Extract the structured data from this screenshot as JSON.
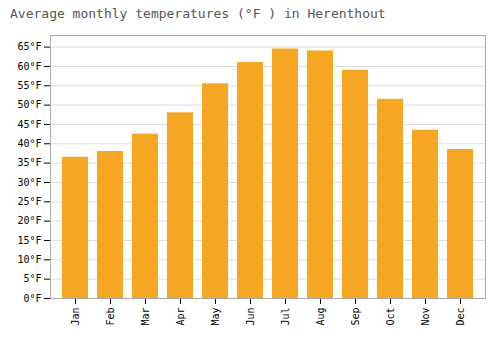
{
  "chart_data": {
    "type": "bar",
    "title": "Average monthly temperatures (°F ) in Herenthout",
    "categories": [
      "Jan",
      "Feb",
      "Mar",
      "Apr",
      "May",
      "Jun",
      "Jul",
      "Aug",
      "Sep",
      "Oct",
      "Nov",
      "Dec"
    ],
    "values": [
      36.5,
      38,
      42.5,
      48,
      55.5,
      61,
      64.5,
      64,
      59,
      51.5,
      43.5,
      38.5
    ],
    "color": "#F5A623",
    "ylim": [
      0,
      68
    ],
    "yticks": [
      {
        "value": 0,
        "label": "0°F"
      },
      {
        "value": 5,
        "label": "5°F"
      },
      {
        "value": 10,
        "label": "10°F"
      },
      {
        "value": 15,
        "label": "15°F"
      },
      {
        "value": 20,
        "label": "20°F"
      },
      {
        "value": 25,
        "label": "25°F"
      },
      {
        "value": 30,
        "label": "30°F"
      },
      {
        "value": 35,
        "label": "35°F"
      },
      {
        "value": 40,
        "label": "40°F"
      },
      {
        "value": 45,
        "label": "45°F"
      },
      {
        "value": 50,
        "label": "50°F"
      },
      {
        "value": 55,
        "label": "55°F"
      },
      {
        "value": 60,
        "label": "60°F"
      },
      {
        "value": 65,
        "label": "65°F"
      }
    ],
    "grid": true
  }
}
